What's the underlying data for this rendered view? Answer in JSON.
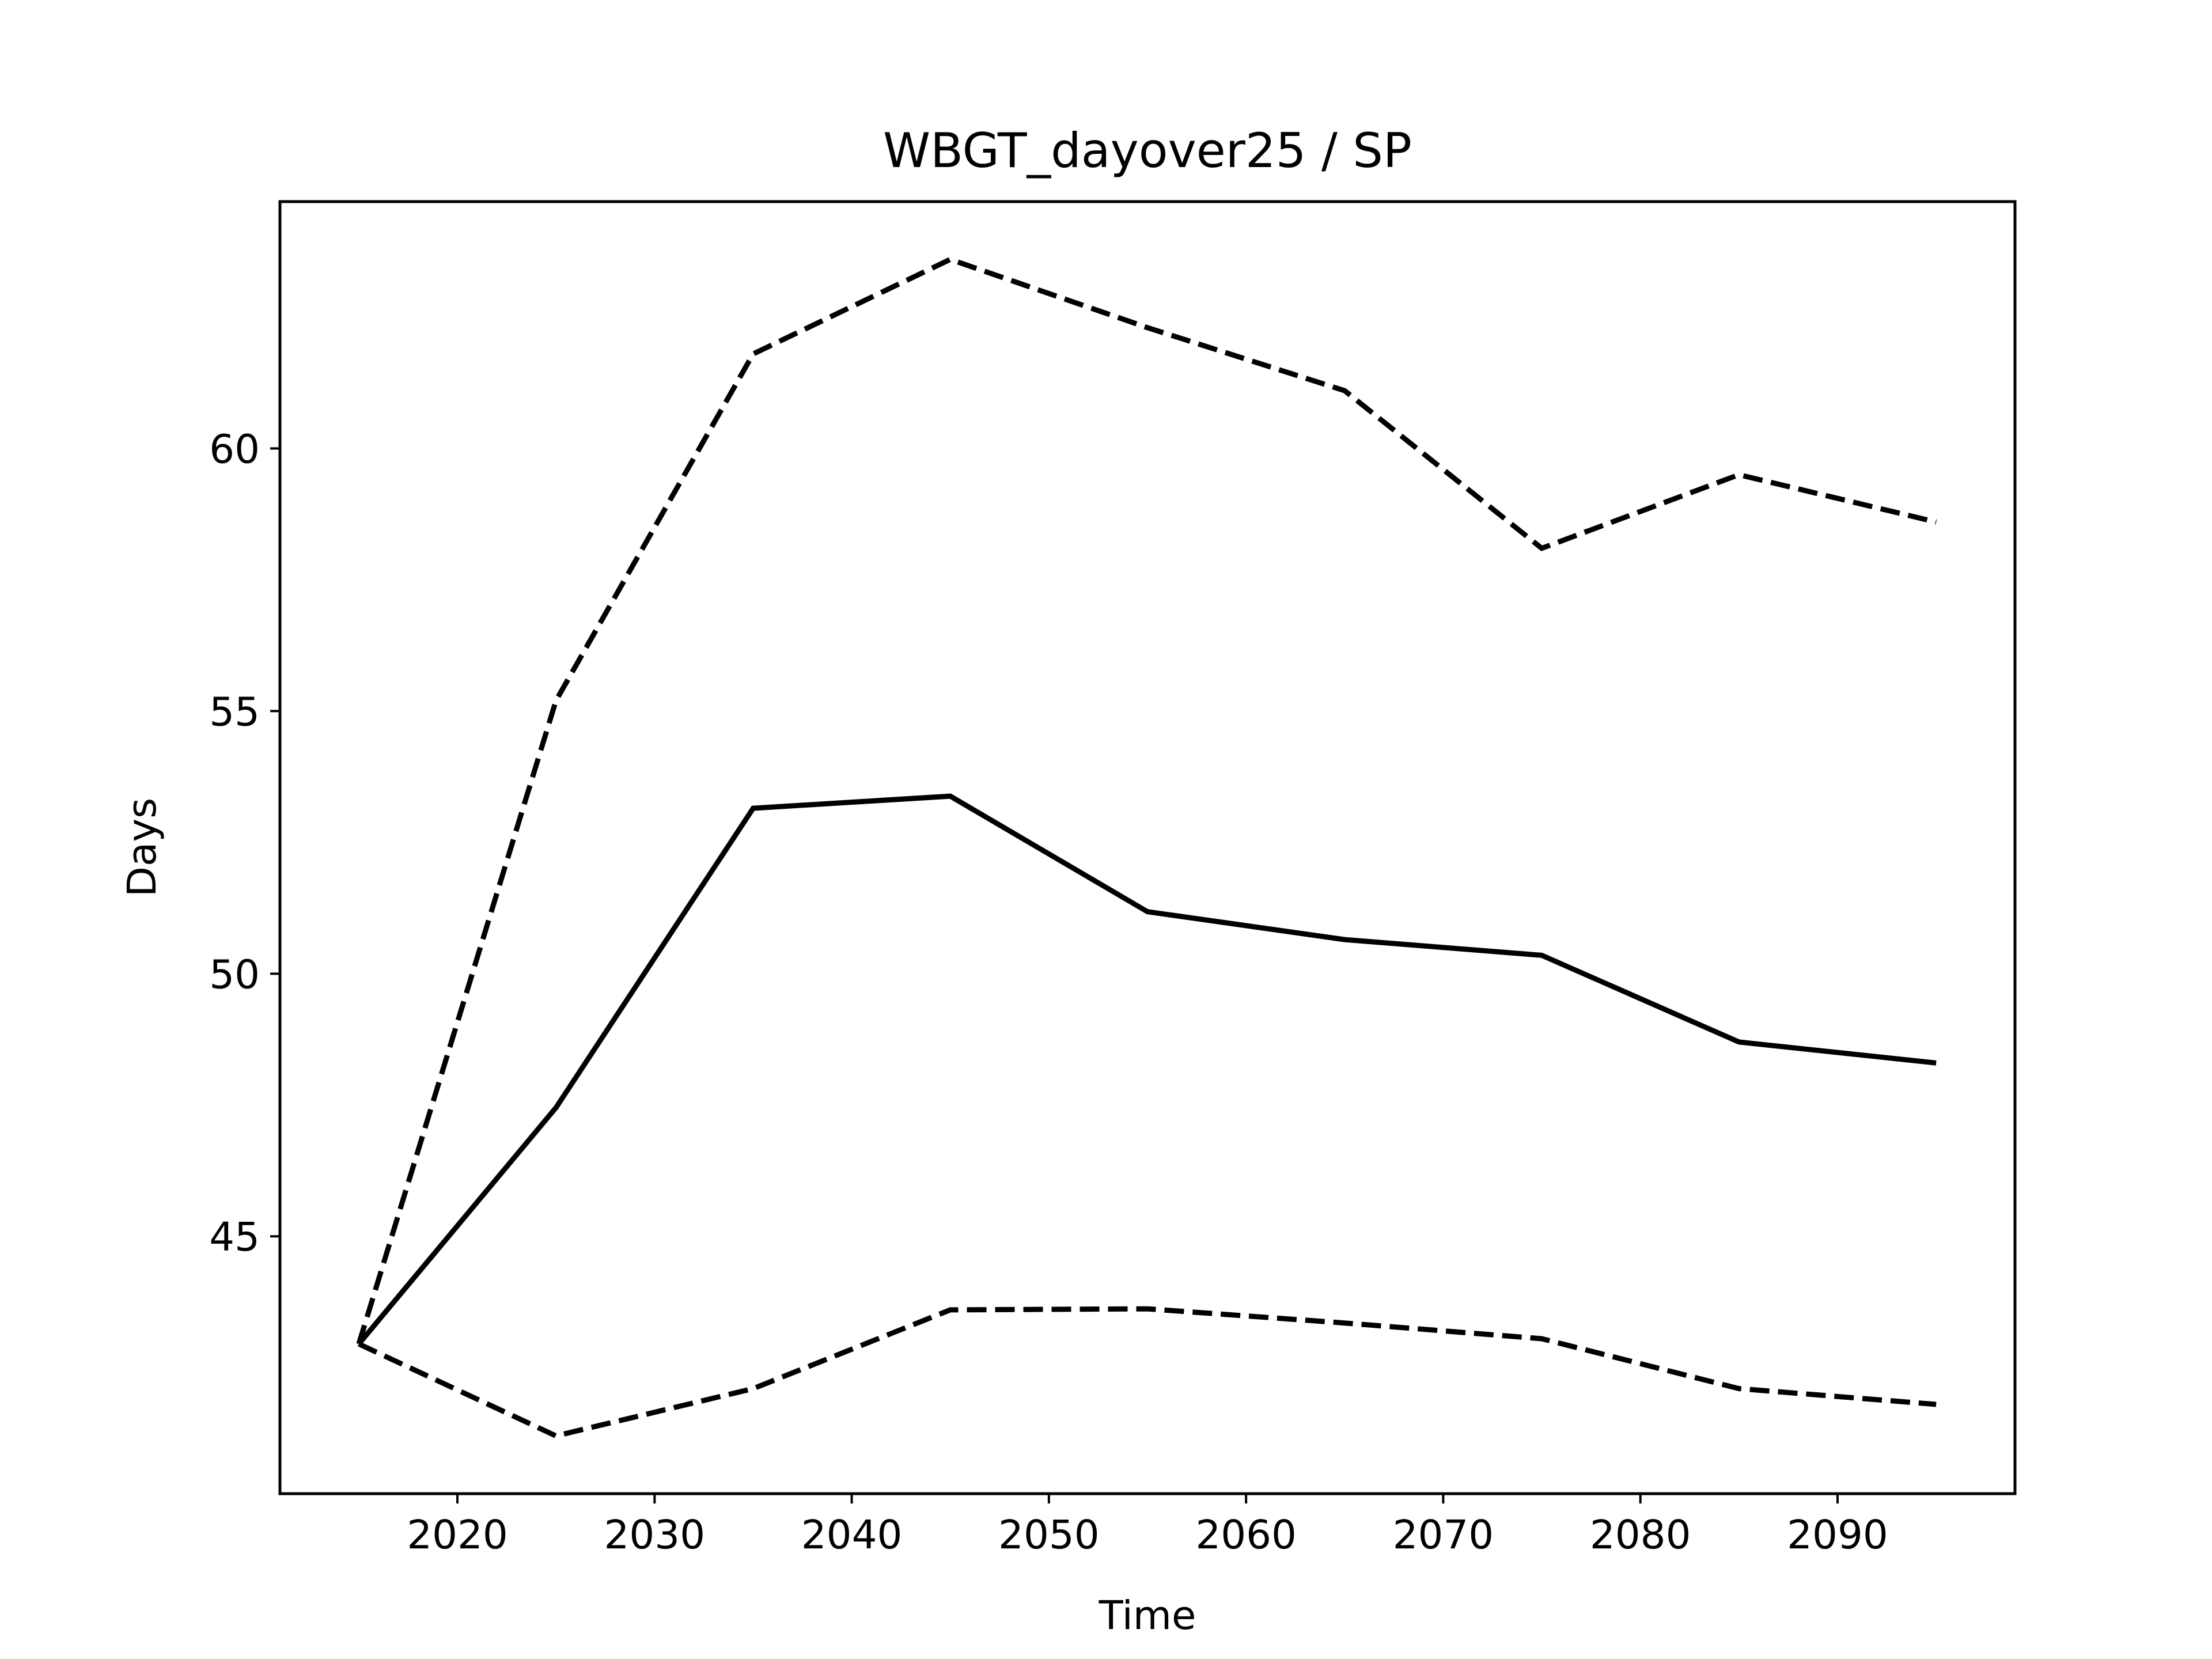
{
  "chart_data": {
    "type": "line",
    "title": "WBGT_dayover25 / SP",
    "xlabel": "Time",
    "ylabel": "Days",
    "xlim": [
      2011,
      2099
    ],
    "ylim": [
      40.1,
      64.7
    ],
    "xticks": [
      2020,
      2030,
      2040,
      2050,
      2060,
      2070,
      2080,
      2090
    ],
    "yticks": [
      45,
      50,
      55,
      60
    ],
    "grid": false,
    "x": [
      2015,
      2025,
      2035,
      2045,
      2055,
      2065,
      2075,
      2085,
      2095
    ],
    "series": [
      {
        "style": "solid",
        "color": "#000000",
        "values": [
          42.95,
          47.45,
          53.15,
          53.38,
          51.18,
          50.65,
          50.35,
          48.7,
          48.3
        ]
      },
      {
        "style": "dashed",
        "color": "#000000",
        "values": [
          42.95,
          55.2,
          61.8,
          63.6,
          62.3,
          61.1,
          58.1,
          59.5,
          58.6
        ]
      },
      {
        "style": "dashed",
        "color": "#000000",
        "values": [
          42.95,
          41.2,
          42.1,
          43.6,
          43.62,
          43.35,
          43.05,
          42.1,
          41.8
        ]
      }
    ]
  }
}
